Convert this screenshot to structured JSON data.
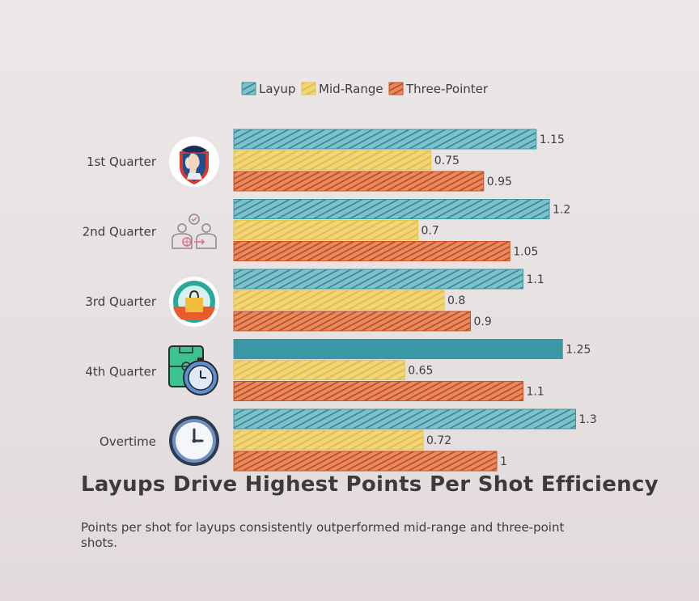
{
  "chart_data": {
    "type": "bar",
    "orientation": "horizontal",
    "categories": [
      "1st Quarter",
      "2nd Quarter",
      "3rd Quarter",
      "4th Quarter",
      "Overtime"
    ],
    "series": [
      {
        "name": "Layup",
        "color": "#3a97a5",
        "values": [
          1.15,
          1.2,
          1.1,
          1.25,
          1.3
        ]
      },
      {
        "name": "Mid-Range",
        "color": "#e8c34e",
        "values": [
          0.75,
          0.7,
          0.8,
          0.65,
          0.72
        ]
      },
      {
        "name": "Three-Pointer",
        "color": "#cc5220",
        "values": [
          0.95,
          1.05,
          0.9,
          1.1,
          1
        ]
      }
    ],
    "value_labels": [
      [
        "1.15",
        "1.2",
        "1.1",
        "1.25",
        "1.3"
      ],
      [
        "0.75",
        "0.7",
        "0.8",
        "0.65",
        "0.72"
      ],
      [
        "0.95",
        "1.05",
        "0.9",
        "1.1",
        "1"
      ]
    ],
    "category_icons": [
      "patriot-mascot-icon",
      "basketball-players-icon",
      "shopping-bag-icon",
      "tactics-board-timer-icon",
      "clock-icon"
    ],
    "legend_position": "top-center",
    "xlim": [
      0,
      1.3
    ],
    "grid": false,
    "title": "Layups Drive Highest Points Per Shot Efficiency",
    "subtitle": "Points per shot for layups consistently outperformed mid-range and three-point shots."
  }
}
